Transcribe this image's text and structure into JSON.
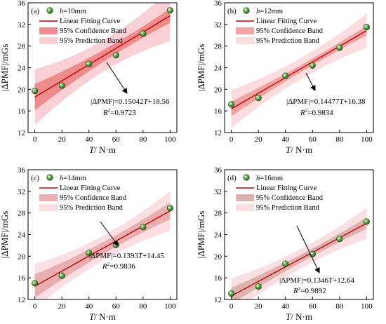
{
  "chart_data": [
    {
      "type": "scatter",
      "panel_label": "(a)",
      "legend": {
        "points_label": "h=10mm",
        "points_var": "h",
        "points_rest": "=10mm",
        "fit_label": "Linear Fitting Curve",
        "confidence_label": "95% Confidence Band",
        "prediction_label": "95% Prediction Band",
        "placement": "top-left"
      },
      "xlabel": "T/ N·m",
      "xlabel_var": "T",
      "xlabel_rest": "/ N·m",
      "ylabel": "|ΔPMF|/mGs",
      "xlim": [
        -5,
        105
      ],
      "ylim": [
        12,
        36
      ],
      "xticks": [
        0,
        20,
        40,
        60,
        80,
        100
      ],
      "yticks": [
        12,
        16,
        20,
        24,
        28,
        32,
        36
      ],
      "x": [
        0,
        20,
        40,
        60,
        80,
        100
      ],
      "y": [
        19.7,
        20.7,
        24.7,
        26.3,
        30.3,
        34.6
      ],
      "fit": {
        "slope": 0.15042,
        "intercept": 18.56
      },
      "confidence_halfwidth": [
        1.65,
        0.55
      ],
      "prediction_halfwidth": [
        3.15,
        2.7
      ],
      "equation": "|ΔPMF|=0.15042T+18.56",
      "equation_var": "T",
      "equation_pre": "|ΔPMF|=0.15042",
      "equation_post": "+18.56",
      "r2": "R²=0.9723",
      "r2_var": "R",
      "r2_sup": "2",
      "r2_value": "=0.9723",
      "colors": {
        "points": "#6aa84f",
        "fit": "#c00000",
        "confidence": "#ee8b8b",
        "prediction": "#f9d0d5"
      }
    },
    {
      "type": "scatter",
      "panel_label": "(b)",
      "legend": {
        "points_label": "h=12mm",
        "points_var": "h",
        "points_rest": "=12mm",
        "fit_label": "Linear Fitting Curve",
        "confidence_label": "95% Confidence Band",
        "prediction_label": "95% Prediction Band",
        "placement": "top-left"
      },
      "xlabel": "T/ N·m",
      "xlabel_var": "T",
      "xlabel_rest": "/ N·m",
      "ylabel": "|ΔPMF|/mGs",
      "xlim": [
        -5,
        105
      ],
      "ylim": [
        12,
        36
      ],
      "xticks": [
        0,
        20,
        40,
        60,
        80,
        100
      ],
      "yticks": [
        12,
        16,
        20,
        24,
        28,
        32,
        36
      ],
      "x": [
        0,
        20,
        40,
        60,
        80,
        100
      ],
      "y": [
        17.2,
        18.4,
        22.5,
        24.4,
        27.7,
        31.5
      ],
      "fit": {
        "slope": 0.14477,
        "intercept": 16.38
      },
      "confidence_halfwidth": [
        0.9,
        0.42
      ],
      "prediction_halfwidth": [
        2.15,
        1.8
      ],
      "equation": "|ΔPMF|=0.14477T+16.38",
      "equation_var": "T",
      "equation_pre": "|ΔPMF|=0.14477",
      "equation_post": "+16.38",
      "r2": "R²=0.9834",
      "r2_var": "R",
      "r2_sup": "2",
      "r2_value": "=0.9834",
      "colors": {
        "points": "#6aa84f",
        "fit": "#c00000",
        "confidence": "#f0a3a3",
        "prediction": "#fbdde0"
      }
    },
    {
      "type": "scatter",
      "panel_label": "(c)",
      "legend": {
        "points_label": "h=14mm",
        "points_var": "h",
        "points_rest": "=14mm",
        "fit_label": "Linear Fitting Curve",
        "confidence_label": "95% Confidence Band",
        "prediction_label": "95% Prediction Band",
        "placement": "top-left"
      },
      "xlabel": "T/ N·m",
      "xlabel_var": "T",
      "xlabel_rest": "/ N·m",
      "ylabel": "|ΔPMF|/mGs",
      "xlim": [
        -5,
        105
      ],
      "ylim": [
        12,
        36
      ],
      "xticks": [
        0,
        20,
        40,
        60,
        80,
        100
      ],
      "yticks": [
        12,
        16,
        20,
        24,
        28,
        32,
        36
      ],
      "x": [
        0,
        20,
        40,
        60,
        80,
        100
      ],
      "y": [
        15.0,
        16.4,
        20.6,
        22.1,
        25.4,
        28.9
      ],
      "fit": {
        "slope": 0.1393,
        "intercept": 14.45
      },
      "confidence_halfwidth": [
        1.4,
        0.8
      ],
      "prediction_halfwidth": [
        2.5,
        2.1
      ],
      "equation": "|ΔPMF|=0.1393T+14.45",
      "equation_var": "T",
      "equation_pre": "|ΔPMF|=0.1393",
      "equation_post": "+14.45",
      "r2": "R²=0.9836",
      "r2_var": "R",
      "r2_sup": "2",
      "r2_value": "=0.9836",
      "colors": {
        "points": "#6aa84f",
        "fit": "#c00000",
        "confidence": "#e9aeb0",
        "prediction": "#fbdfe2"
      }
    },
    {
      "type": "scatter",
      "panel_label": "(d)",
      "legend": {
        "points_label": "h=16mm",
        "points_var": "h",
        "points_rest": "=16mm",
        "fit_label": "Linear Fitting Curve",
        "confidence_label": "95% Confidence Band",
        "prediction_label": "95% Prediction Band",
        "placement": "top-left"
      },
      "xlabel": "T/ N·m",
      "xlabel_var": "T",
      "xlabel_rest": "/ N·m",
      "ylabel": "|ΔPMF|/mGs",
      "xlim": [
        -5,
        105
      ],
      "ylim": [
        12,
        36
      ],
      "xticks": [
        0,
        20,
        40,
        60,
        80,
        100
      ],
      "yticks": [
        12,
        16,
        20,
        24,
        28,
        32,
        36
      ],
      "x": [
        0,
        20,
        40,
        60,
        80,
        100
      ],
      "y": [
        13.1,
        14.4,
        18.6,
        20.4,
        23.2,
        26.4
      ],
      "fit": {
        "slope": 0.1346,
        "intercept": 12.64
      },
      "confidence_halfwidth": [
        1.0,
        0.5
      ],
      "prediction_halfwidth": [
        2.0,
        1.6
      ],
      "equation": "|ΔPMF|=0.1346T+12.64",
      "equation_var": "T",
      "equation_pre": "|ΔPMF|=0.1346",
      "equation_post": "+12.64",
      "r2": "R²=0.9892",
      "r2_var": "R",
      "r2_sup": "2",
      "r2_value": "=0.9892",
      "colors": {
        "points": "#6aa84f",
        "fit": "#c00000",
        "confidence": "#dcb2ae",
        "prediction": "#fadfe2"
      }
    }
  ]
}
